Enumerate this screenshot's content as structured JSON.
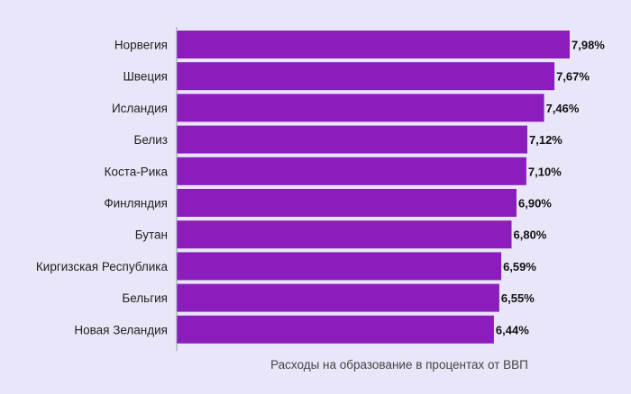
{
  "chart_data": {
    "type": "bar",
    "orientation": "horizontal",
    "categories": [
      "Норвегия",
      "Швеция",
      "Исландия",
      "Белиз",
      "Коста-Рика",
      "Финляндия",
      "Бутан",
      "Киргизская Республика",
      "Бельгия",
      "Новая Зеландия"
    ],
    "values": [
      7.98,
      7.67,
      7.46,
      7.12,
      7.1,
      6.9,
      6.8,
      6.59,
      6.55,
      6.44
    ],
    "value_labels": [
      "7,98%",
      "7,67%",
      "7,46%",
      "7,12%",
      "7,10%",
      "6,90%",
      "6,80%",
      "6,59%",
      "6,55%",
      "6,44%"
    ],
    "title": "",
    "xlabel": "Расходы на образование в процентах от ВВП",
    "ylabel": "",
    "xlim": [
      0,
      7.98
    ],
    "grid": false,
    "colors": {
      "background": "#e8e6f8",
      "bar": "#8b1dbd",
      "axis": "#9a9aa8",
      "text": "#222222",
      "xlabel": "#444444"
    }
  }
}
